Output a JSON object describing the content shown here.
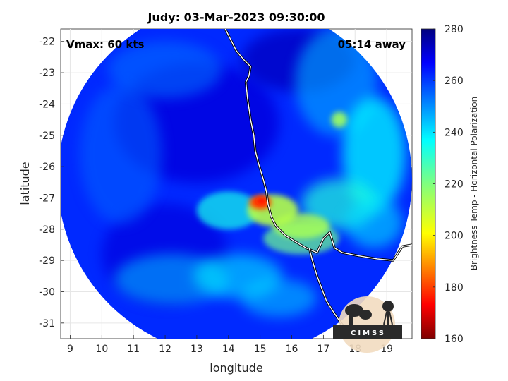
{
  "title": "Judy: 03-Mar-2023 09:30:00",
  "annotations": {
    "vmax": "Vmax: 60 kts",
    "eta": "05:14 away"
  },
  "logo": {
    "text": "CIMSS"
  },
  "colors": {
    "axes_bg": "#ffffff",
    "grid": "#e6e6e6",
    "coastline": "#ffffff",
    "coast_edge": "#000000"
  },
  "chart_data": {
    "type": "heatmap",
    "title": "Judy: 03-Mar-2023 09:30:00",
    "xlabel": "longitude",
    "ylabel": "latitude",
    "xlim": [
      8.7,
      19.8
    ],
    "ylim": [
      -31.5,
      -21.6
    ],
    "x_ticks": [
      9,
      10,
      11,
      12,
      13,
      14,
      15,
      16,
      17,
      18,
      19
    ],
    "y_ticks": [
      -22,
      -23,
      -24,
      -25,
      -26,
      -27,
      -28,
      -29,
      -30,
      -31
    ],
    "grid": true,
    "colorbar": {
      "label": "Brightness Temp - Horizontal Polarization",
      "range": [
        160,
        280
      ],
      "ticks": [
        280,
        260,
        240,
        220,
        200,
        180,
        160
      ],
      "colormap": "jet"
    },
    "swath": {
      "center_lon": 14.2,
      "center_lat": -26.4,
      "radius_deg": 5.6,
      "background_value": 262
    },
    "features": [
      {
        "label": "cold core",
        "lon": 15.0,
        "lat": -27.15,
        "value": 182
      },
      {
        "label": "band east",
        "lon": 15.8,
        "lat": -27.6,
        "value": 215
      },
      {
        "label": "outer band",
        "lon": 17.9,
        "lat": -26.2,
        "value": 232
      },
      {
        "label": "eastern spot",
        "lon": 17.5,
        "lat": -24.5,
        "value": 225
      }
    ],
    "coastline": [
      [
        13.9,
        -21.6
      ],
      [
        14.25,
        -22.3
      ],
      [
        14.5,
        -22.6
      ],
      [
        14.7,
        -22.8
      ],
      [
        14.65,
        -23.1
      ],
      [
        14.55,
        -23.3
      ],
      [
        14.6,
        -23.8
      ],
      [
        14.7,
        -24.5
      ],
      [
        14.8,
        -25.0
      ],
      [
        14.85,
        -25.5
      ],
      [
        14.95,
        -25.9
      ],
      [
        15.1,
        -26.4
      ],
      [
        15.2,
        -26.8
      ],
      [
        15.25,
        -27.2
      ],
      [
        15.35,
        -27.6
      ],
      [
        15.5,
        -27.9
      ],
      [
        15.8,
        -28.2
      ],
      [
        16.2,
        -28.45
      ],
      [
        16.45,
        -28.6
      ],
      [
        16.8,
        -28.75
      ],
      [
        17.0,
        -28.3
      ],
      [
        17.2,
        -28.1
      ],
      [
        17.35,
        -28.6
      ],
      [
        17.6,
        -28.75
      ],
      [
        18.1,
        -28.85
      ],
      [
        18.7,
        -28.95
      ],
      [
        19.2,
        -29.0
      ],
      [
        19.5,
        -28.55
      ],
      [
        19.8,
        -28.5
      ]
    ],
    "coastline_south": [
      [
        16.55,
        -28.6
      ],
      [
        16.65,
        -29.0
      ],
      [
        16.8,
        -29.5
      ],
      [
        16.95,
        -29.9
      ],
      [
        17.1,
        -30.3
      ],
      [
        17.35,
        -30.7
      ],
      [
        17.55,
        -31.0
      ],
      [
        17.8,
        -31.3
      ],
      [
        17.95,
        -31.5
      ]
    ]
  }
}
